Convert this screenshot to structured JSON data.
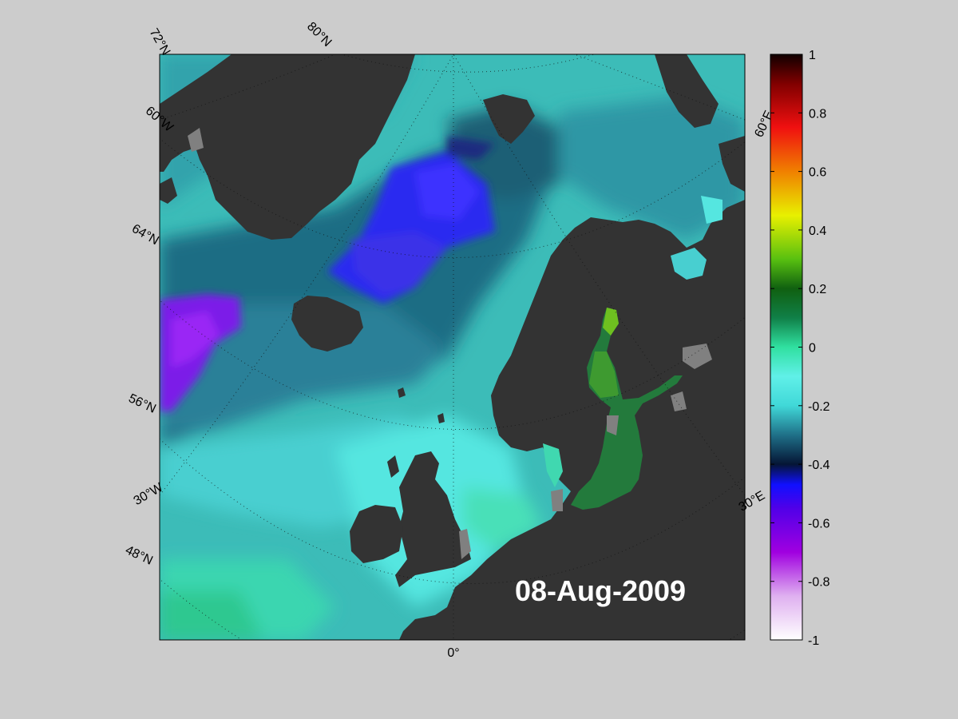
{
  "map": {
    "date_label": "08-Aug-2009",
    "lat_labels": [
      "72°N",
      "80°N",
      "64°N",
      "56°N",
      "48°N"
    ],
    "lon_labels": [
      "60°W",
      "30°W",
      "0°",
      "30°E",
      "60°E"
    ],
    "colors": {
      "background": "#cccccc",
      "land": "#333333",
      "ice_land": "#808080",
      "ocean_base": "#3cbcb8"
    }
  },
  "colorbar": {
    "ticks": [
      "1",
      "0.8",
      "0.6",
      "0.4",
      "0.2",
      "0",
      "-0.2",
      "-0.4",
      "-0.6",
      "-0.8",
      "-1"
    ],
    "range": [
      -1,
      1
    ],
    "stops": [
      {
        "v": -1.0,
        "c": "#ffffff"
      },
      {
        "v": -0.85,
        "c": "#dfb0f0"
      },
      {
        "v": -0.7,
        "c": "#a000e0"
      },
      {
        "v": -0.55,
        "c": "#5000e8"
      },
      {
        "v": -0.47,
        "c": "#1010ff"
      },
      {
        "v": -0.4,
        "c": "#051535"
      },
      {
        "v": -0.3,
        "c": "#1f7088"
      },
      {
        "v": -0.2,
        "c": "#40d8d8"
      },
      {
        "v": -0.1,
        "c": "#60f0e8"
      },
      {
        "v": 0.0,
        "c": "#30e0a0"
      },
      {
        "v": 0.1,
        "c": "#108048"
      },
      {
        "v": 0.2,
        "c": "#106010"
      },
      {
        "v": 0.3,
        "c": "#58c010"
      },
      {
        "v": 0.45,
        "c": "#e8f000"
      },
      {
        "v": 0.6,
        "c": "#f08000"
      },
      {
        "v": 0.75,
        "c": "#f01010"
      },
      {
        "v": 0.9,
        "c": "#800000"
      },
      {
        "v": 1.0,
        "c": "#100000"
      }
    ]
  }
}
